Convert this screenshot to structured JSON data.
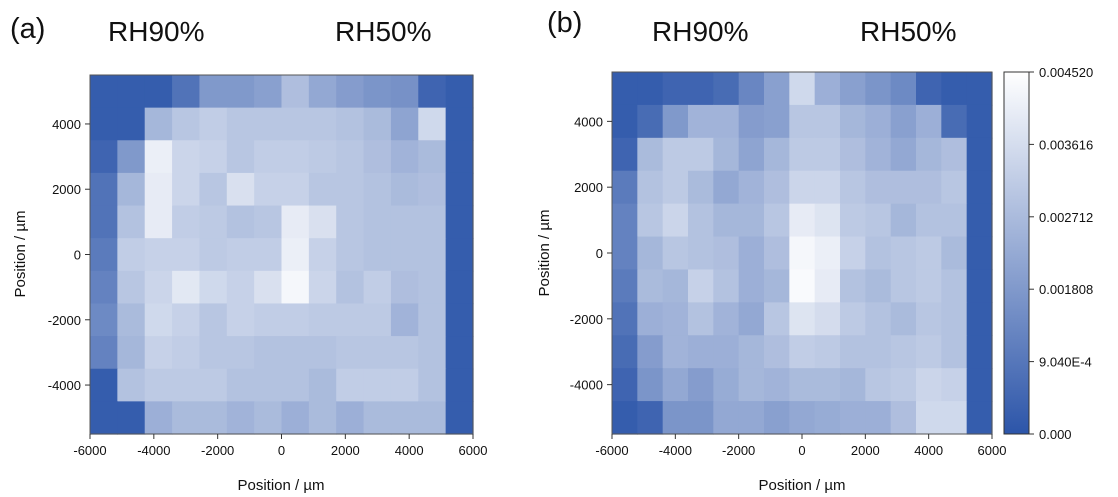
{
  "chart_data": [
    {
      "type": "heatmap",
      "panel_label": "(a)",
      "conditions": [
        "RH90%",
        "RH50%"
      ],
      "xlabel": "Position / µm",
      "ylabel": "Position / µm",
      "xlim": [
        -6000,
        6000
      ],
      "ylim": [
        -5500,
        5500
      ],
      "x_ticks": [
        "-6000",
        "-4000",
        "-2000",
        "0",
        "2000",
        "4000",
        "6000"
      ],
      "y_ticks": [
        "4000",
        "2000",
        "0",
        "-2000",
        "-4000"
      ],
      "color_range": [
        0.0,
        0.00452
      ],
      "colormap": [
        "#2c55a9",
        "#ffffff"
      ],
      "grid_rows_top_to_bottom": [
        [
          0.0002,
          0.0002,
          0.0002,
          0.0008,
          0.0018,
          0.0018,
          0.002,
          0.0028,
          0.0022,
          0.0019,
          0.0017,
          0.0016,
          0.0004,
          0.0002
        ],
        [
          0.0002,
          0.0002,
          0.0026,
          0.003,
          0.0032,
          0.003,
          0.003,
          0.003,
          0.003,
          0.0029,
          0.0027,
          0.0021,
          0.0035,
          0.0002
        ],
        [
          0.0004,
          0.0018,
          0.0041,
          0.0034,
          0.0033,
          0.003,
          0.0032,
          0.0032,
          0.0031,
          0.003,
          0.0028,
          0.0025,
          0.0027,
          0.0002
        ],
        [
          0.0008,
          0.0026,
          0.004,
          0.0034,
          0.003,
          0.0037,
          0.0033,
          0.0033,
          0.003,
          0.003,
          0.0029,
          0.0027,
          0.0028,
          0.0002
        ],
        [
          0.0008,
          0.0029,
          0.004,
          0.0032,
          0.0031,
          0.0029,
          0.003,
          0.004,
          0.0037,
          0.003,
          0.0029,
          0.0029,
          0.0029,
          0.0002
        ],
        [
          0.001,
          0.0032,
          0.0033,
          0.0033,
          0.0031,
          0.0032,
          0.0032,
          0.0041,
          0.0033,
          0.003,
          0.0029,
          0.0029,
          0.0029,
          0.0002
        ],
        [
          0.0012,
          0.003,
          0.0034,
          0.0039,
          0.0035,
          0.0033,
          0.0037,
          0.0043,
          0.0034,
          0.0029,
          0.0032,
          0.0028,
          0.0029,
          0.0002
        ],
        [
          0.0014,
          0.0027,
          0.0035,
          0.0033,
          0.003,
          0.0033,
          0.0032,
          0.0032,
          0.0031,
          0.0031,
          0.0031,
          0.0025,
          0.0029,
          0.0002
        ],
        [
          0.0012,
          0.0026,
          0.0033,
          0.0032,
          0.003,
          0.003,
          0.0029,
          0.0029,
          0.0029,
          0.003,
          0.003,
          0.003,
          0.0029,
          0.0002
        ],
        [
          0.0002,
          0.0029,
          0.0031,
          0.0031,
          0.0031,
          0.0029,
          0.0029,
          0.0029,
          0.0027,
          0.0032,
          0.0032,
          0.0032,
          0.0029,
          0.0002
        ],
        [
          0.0002,
          0.0002,
          0.0024,
          0.0027,
          0.0027,
          0.0025,
          0.0027,
          0.0024,
          0.0027,
          0.0024,
          0.0027,
          0.0027,
          0.0027,
          0.0002
        ]
      ]
    },
    {
      "type": "heatmap",
      "panel_label": "(b)",
      "conditions": [
        "RH90%",
        "RH50%"
      ],
      "xlabel": "Position / µm",
      "ylabel": "Position / µm",
      "xlim": [
        -6000,
        6000
      ],
      "ylim": [
        -5500,
        5500
      ],
      "x_ticks": [
        "-6000",
        "-4000",
        "-2000",
        "0",
        "2000",
        "4000",
        "6000"
      ],
      "y_ticks": [
        "4000",
        "2000",
        "0",
        "-2000",
        "-4000"
      ],
      "color_range": [
        0.0,
        0.00452
      ],
      "colormap": [
        "#2c55a9",
        "#ffffff"
      ],
      "grid_rows_top_to_bottom": [
        [
          0.0002,
          0.0002,
          0.0004,
          0.0004,
          0.0006,
          0.0013,
          0.002,
          0.0035,
          0.0024,
          0.002,
          0.0017,
          0.0014,
          0.0004,
          0.0002,
          0.0002
        ],
        [
          0.0002,
          0.0006,
          0.0018,
          0.0025,
          0.0025,
          0.0019,
          0.002,
          0.003,
          0.003,
          0.0026,
          0.0024,
          0.002,
          0.0024,
          0.0006,
          0.0002
        ],
        [
          0.0004,
          0.0027,
          0.0031,
          0.0031,
          0.0026,
          0.0021,
          0.0026,
          0.0031,
          0.0031,
          0.0028,
          0.0025,
          0.0022,
          0.0026,
          0.0028,
          0.0002
        ],
        [
          0.001,
          0.0029,
          0.0031,
          0.0027,
          0.0022,
          0.0025,
          0.0028,
          0.0034,
          0.0034,
          0.003,
          0.0028,
          0.0028,
          0.0028,
          0.003,
          0.0002
        ],
        [
          0.0012,
          0.003,
          0.0034,
          0.0029,
          0.0026,
          0.0026,
          0.003,
          0.004,
          0.0038,
          0.0031,
          0.003,
          0.0026,
          0.0029,
          0.0029,
          0.0002
        ],
        [
          0.0012,
          0.0026,
          0.003,
          0.0029,
          0.0028,
          0.0024,
          0.0028,
          0.0043,
          0.0041,
          0.0033,
          0.0029,
          0.003,
          0.0031,
          0.0027,
          0.0002
        ],
        [
          0.001,
          0.0027,
          0.0026,
          0.0033,
          0.0029,
          0.0024,
          0.0026,
          0.0044,
          0.004,
          0.0029,
          0.0027,
          0.003,
          0.0031,
          0.0029,
          0.0002
        ],
        [
          0.0008,
          0.0024,
          0.0025,
          0.0029,
          0.0025,
          0.0022,
          0.003,
          0.0038,
          0.0036,
          0.0031,
          0.0029,
          0.0027,
          0.003,
          0.0029,
          0.0002
        ],
        [
          0.0006,
          0.0019,
          0.0025,
          0.0024,
          0.0024,
          0.0026,
          0.0028,
          0.0032,
          0.0031,
          0.0029,
          0.0029,
          0.003,
          0.0031,
          0.0029,
          0.0002
        ],
        [
          0.0004,
          0.0017,
          0.0022,
          0.0019,
          0.0023,
          0.0026,
          0.0025,
          0.0027,
          0.0027,
          0.0026,
          0.003,
          0.0031,
          0.0034,
          0.0033,
          0.0002
        ],
        [
          0.0002,
          0.0004,
          0.0017,
          0.0017,
          0.0022,
          0.0022,
          0.002,
          0.0022,
          0.0023,
          0.0024,
          0.0024,
          0.0028,
          0.0035,
          0.0035,
          0.0002
        ]
      ],
      "colorbar": {
        "tick_labels": [
          "0.004520",
          "0.003616",
          "0.002712",
          "0.001808",
          "9.040E-4",
          "0.000"
        ]
      }
    }
  ]
}
